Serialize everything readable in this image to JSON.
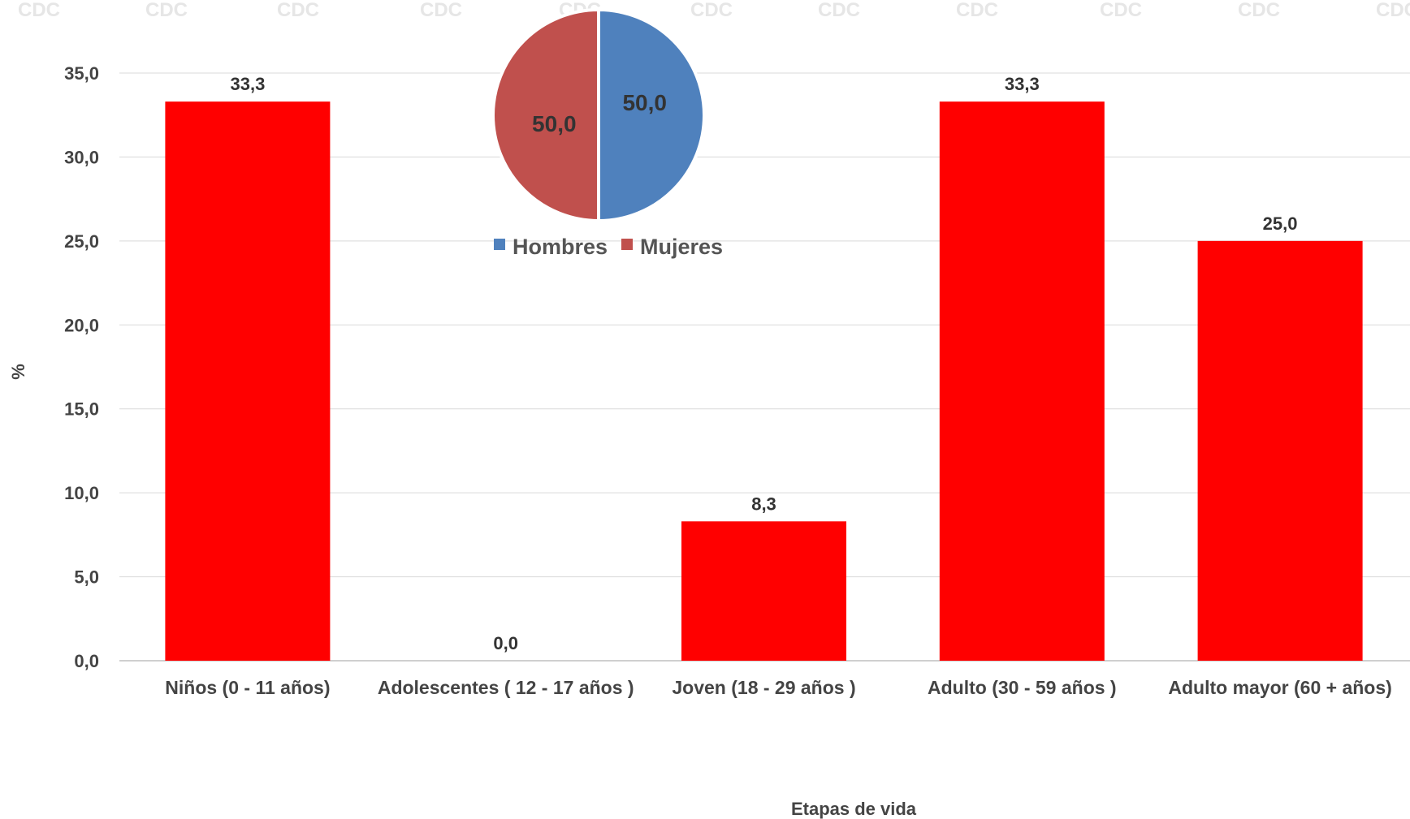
{
  "watermark": "CDC",
  "chart_data": [
    {
      "type": "bar",
      "title": "",
      "xlabel": "Etapas de vida",
      "ylabel": "%",
      "ylim": [
        0,
        35
      ],
      "ytick_step": 5,
      "yticks": [
        "0,0",
        "5,0",
        "10,0",
        "15,0",
        "20,0",
        "25,0",
        "30,0",
        "35,0"
      ],
      "grid": true,
      "categories": [
        "Niños (0 - 11 años)",
        "Adolescentes ( 12 - 17 años )",
        "Joven (18 - 29 años )",
        "Adulto (30 - 59 años )",
        "Adulto mayor (60 + años)"
      ],
      "values": [
        33.3,
        0.0,
        8.3,
        33.3,
        25.0
      ],
      "value_labels": [
        "33,3",
        "0,0",
        "8,3",
        "33,3",
        "25,0"
      ],
      "bar_color": "#ff0000"
    },
    {
      "type": "pie",
      "title": "",
      "legend_position": "bottom",
      "slices": [
        {
          "name": "Hombres",
          "value": 50.0,
          "label": "50,0",
          "color": "#4f81bd"
        },
        {
          "name": "Mujeres",
          "value": 50.0,
          "label": "50,0",
          "color": "#c0504d"
        }
      ]
    }
  ]
}
